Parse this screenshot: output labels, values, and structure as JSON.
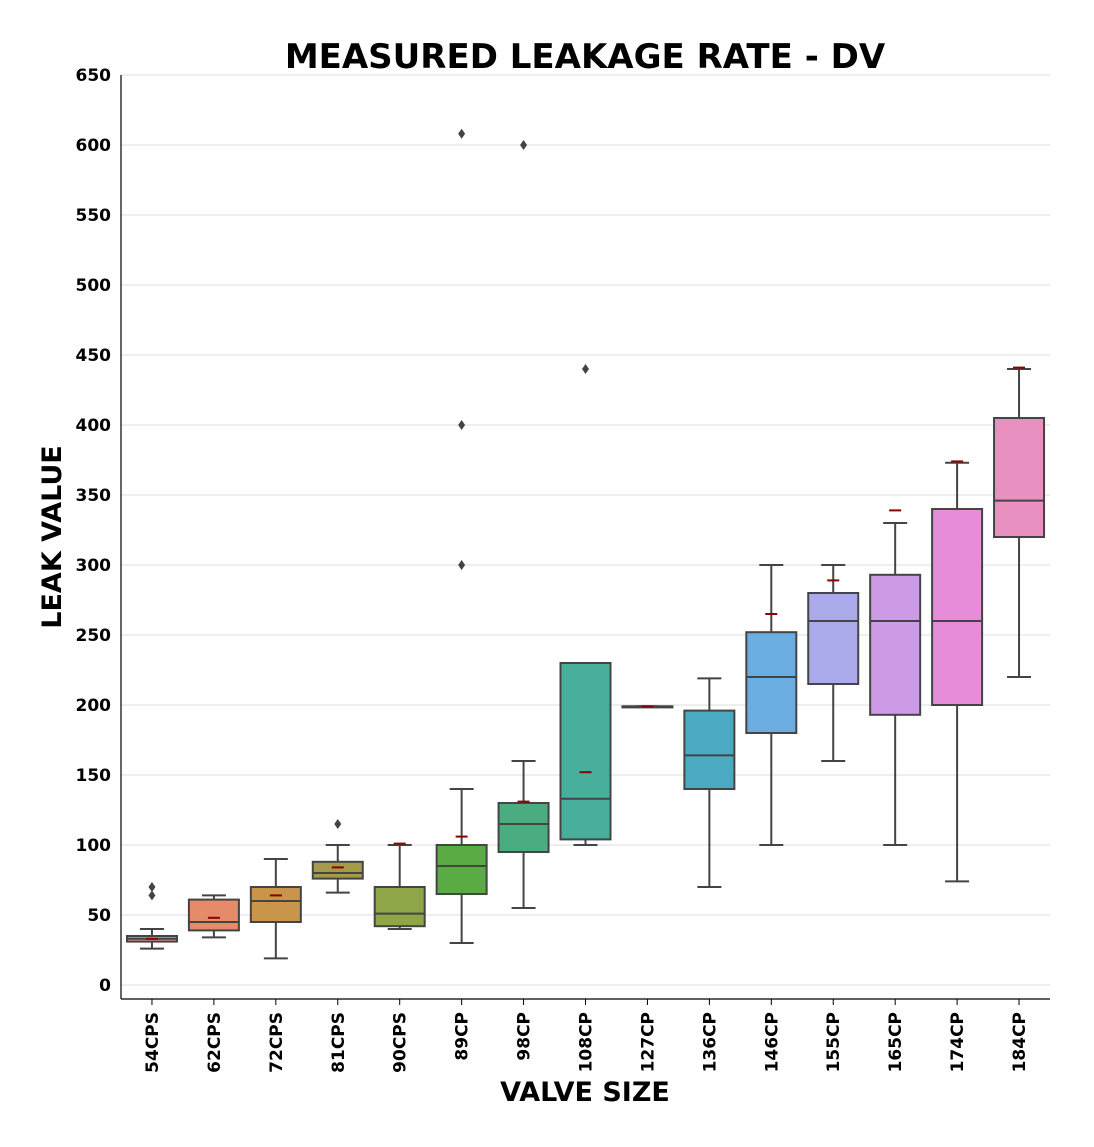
{
  "chart_data": {
    "type": "box",
    "title": "MEASURED LEAKAGE RATE - DV",
    "xlabel": "VALVE SIZE",
    "ylabel": "LEAK VALUE",
    "ylim": [
      -10,
      650
    ],
    "yticks": [
      0,
      50,
      100,
      150,
      200,
      250,
      300,
      350,
      400,
      450,
      500,
      550,
      600,
      650
    ],
    "grid": "horizontal",
    "categories": [
      "54CPS",
      "62CPS",
      "72CPS",
      "81CPS",
      "90CPS",
      "89CP",
      "98CP",
      "108CP",
      "127CP",
      "136CP",
      "146CP",
      "155CP",
      "165CP",
      "174CP",
      "184CP"
    ],
    "boxes": [
      {
        "category": "54CPS",
        "whisker_low": 26,
        "q1": 31,
        "median": 33,
        "q3": 35,
        "whisker_high": 40,
        "mean": 33,
        "outliers": [
          64,
          70
        ],
        "color": "#e9949a"
      },
      {
        "category": "62CPS",
        "whisker_low": 34,
        "q1": 39,
        "median": 45,
        "q3": 61,
        "whisker_high": 64,
        "mean": 48,
        "outliers": [],
        "color": "#e58b6a"
      },
      {
        "category": "72CPS",
        "whisker_low": 19,
        "q1": 45,
        "median": 60,
        "q3": 70,
        "whisker_high": 90,
        "mean": 64,
        "outliers": [],
        "color": "#c8954a"
      },
      {
        "category": "81CPS",
        "whisker_low": 66,
        "q1": 76,
        "median": 80,
        "q3": 88,
        "whisker_high": 100,
        "mean": 84,
        "outliers": [
          115
        ],
        "color": "#a59a47"
      },
      {
        "category": "90CPS",
        "whisker_low": 40,
        "q1": 42,
        "median": 51,
        "q3": 70,
        "whisker_high": 100,
        "mean": 101,
        "outliers": [],
        "color": "#8ea647"
      },
      {
        "category": "89CP",
        "whisker_low": 30,
        "q1": 65,
        "median": 85,
        "q3": 100,
        "whisker_high": 140,
        "mean": 106,
        "outliers": [
          300,
          400,
          608
        ],
        "color": "#5bab45"
      },
      {
        "category": "98CP",
        "whisker_low": 55,
        "q1": 95,
        "median": 115,
        "q3": 130,
        "whisker_high": 160,
        "mean": 131,
        "outliers": [
          600
        ],
        "color": "#49ad7f"
      },
      {
        "category": "108CP",
        "whisker_low": 100,
        "q1": 104,
        "median": 133,
        "q3": 230,
        "whisker_high": 230,
        "mean": 152,
        "outliers": [
          440
        ],
        "color": "#47af9c"
      },
      {
        "category": "127CP",
        "whisker_low": 199,
        "q1": 199,
        "median": 199,
        "q3": 199,
        "whisker_high": 199,
        "mean": 199,
        "outliers": [],
        "color": "#46acac"
      },
      {
        "category": "136CP",
        "whisker_low": 70,
        "q1": 140,
        "median": 164,
        "q3": 196,
        "whisker_high": 219,
        "mean": null,
        "outliers": [],
        "color": "#4aaac2"
      },
      {
        "category": "146CP",
        "whisker_low": 100,
        "q1": 180,
        "median": 220,
        "q3": 252,
        "whisker_high": 300,
        "mean": 265,
        "outliers": [],
        "color": "#6aade0"
      },
      {
        "category": "155CP",
        "whisker_low": 160,
        "q1": 215,
        "median": 260,
        "q3": 280,
        "whisker_high": 300,
        "mean": 289,
        "outliers": [],
        "color": "#aaaaeb"
      },
      {
        "category": "165CP",
        "whisker_low": 100,
        "q1": 193,
        "median": 260,
        "q3": 293,
        "whisker_high": 330,
        "mean": 339,
        "outliers": [],
        "color": "#cd9ae6"
      },
      {
        "category": "174CP",
        "whisker_low": 74,
        "q1": 200,
        "median": 260,
        "q3": 340,
        "whisker_high": 373,
        "mean": 374,
        "outliers": [],
        "color": "#e58dd9"
      },
      {
        "category": "184CP",
        "whisker_low": 220,
        "q1": 320,
        "median": 346,
        "q3": 405,
        "whisker_high": 440,
        "mean": 441,
        "outliers": [],
        "color": "#e890c0"
      }
    ],
    "mean_marker_color": "#8b0000",
    "line_color": "#444444",
    "grid_color": "#dddddd"
  }
}
